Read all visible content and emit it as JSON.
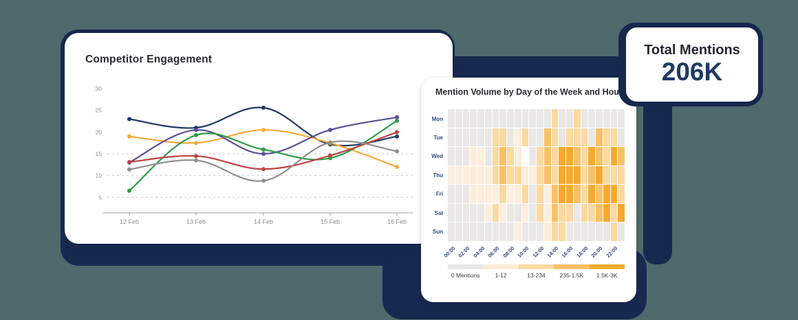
{
  "background": {
    "canvas_color": "#4e6a6c",
    "shadow_color": "#17294e",
    "card_color": "#ffffff"
  },
  "chart_data": [
    {
      "type": "line",
      "title": "Competitor Engagement",
      "x": [
        "12 Feb",
        "13 Feb",
        "14 Feb",
        "15 Feb",
        "16 Feb"
      ],
      "xlabel": "",
      "ylabel": "",
      "ylim": [
        5,
        30
      ],
      "yticks": [
        30,
        25,
        20,
        15,
        10,
        5
      ],
      "gridlines": "dashed horizontal at 15, 10, 5",
      "legend_position": "none",
      "series": [
        {
          "name": "navy",
          "color": "#1e3a68",
          "values": [
            23,
            21,
            25.6,
            17.2,
            19
          ]
        },
        {
          "name": "orange",
          "color": "#f7a838",
          "values": [
            19,
            17.5,
            20.5,
            17.5,
            12
          ]
        },
        {
          "name": "purple",
          "color": "#5c4d9c",
          "values": [
            13,
            20.5,
            15,
            20.5,
            23.4
          ]
        },
        {
          "name": "green",
          "color": "#2e9b45",
          "values": [
            6.5,
            19.3,
            16,
            14,
            22.6
          ]
        },
        {
          "name": "red",
          "color": "#bd4343",
          "values": [
            13.1,
            14.5,
            11.5,
            14.6,
            20
          ]
        },
        {
          "name": "gray",
          "color": "#8f8f8f",
          "values": [
            11.4,
            13.5,
            8.8,
            17.6,
            15.6
          ]
        }
      ]
    },
    {
      "type": "heatmap",
      "title": "Mention Volume by Day of the Week and Hour",
      "rows": [
        "Mon",
        "Tue",
        "Wed",
        "Thu",
        "Fri",
        "Sat",
        "Sun"
      ],
      "col_labels": [
        "00:00",
        "02:00",
        "04:00",
        "06:00",
        "08:00",
        "10:00",
        "12:00",
        "14:00",
        "16:00",
        "18:00",
        "20:00",
        "22:00"
      ],
      "cols_per_label": 2,
      "palette": [
        "#e9e8e7",
        "#fdeedd",
        "#fbd9a0",
        "#f8c168",
        "#f6a92e",
        "#ffffff"
      ],
      "matrix": [
        [
          0,
          0,
          0,
          0,
          0,
          0,
          0,
          0,
          0,
          0,
          0,
          0,
          0,
          0,
          2,
          0,
          0,
          2,
          0,
          0,
          0,
          0,
          0,
          0
        ],
        [
          0,
          0,
          0,
          0,
          0,
          0,
          2,
          2,
          0,
          1,
          2,
          0,
          0,
          3,
          2,
          0,
          2,
          2,
          2,
          0,
          3,
          2,
          2,
          0
        ],
        [
          0,
          0,
          0,
          1,
          1,
          0,
          2,
          3,
          2,
          1,
          5,
          0,
          2,
          3,
          2,
          4,
          4,
          3,
          2,
          4,
          3,
          2,
          4,
          3
        ],
        [
          1,
          1,
          1,
          1,
          1,
          1,
          2,
          3,
          2,
          2,
          1,
          1,
          2,
          3,
          2,
          4,
          4,
          4,
          2,
          3,
          4,
          2,
          2,
          2
        ],
        [
          0,
          0,
          0,
          1,
          1,
          1,
          1,
          2,
          1,
          1,
          2,
          0,
          2,
          1,
          3,
          4,
          4,
          3,
          2,
          4,
          3,
          4,
          4,
          2
        ],
        [
          0,
          0,
          0,
          0,
          0,
          1,
          2,
          1,
          0,
          0,
          1,
          0,
          2,
          1,
          3,
          2,
          2,
          0,
          2,
          2,
          3,
          4,
          2,
          4
        ],
        [
          0,
          0,
          0,
          0,
          0,
          0,
          0,
          0,
          0,
          1,
          0,
          0,
          0,
          1,
          2,
          2,
          0,
          0,
          0,
          0,
          0,
          0,
          2,
          0
        ]
      ],
      "legend": [
        {
          "label": "0 Mentions",
          "color": "#e9e8e7"
        },
        {
          "label": "1-12",
          "color": "#faecd4"
        },
        {
          "label": "13-234",
          "color": "#fbd9a0"
        },
        {
          "label": "235-1.5K",
          "color": "#f8c168"
        },
        {
          "label": "1.5K-3K",
          "color": "#f6a92e"
        }
      ]
    },
    {
      "type": "stat",
      "title": "Total Mentions",
      "value": "206K",
      "value_color": "#1f3a66"
    }
  ]
}
